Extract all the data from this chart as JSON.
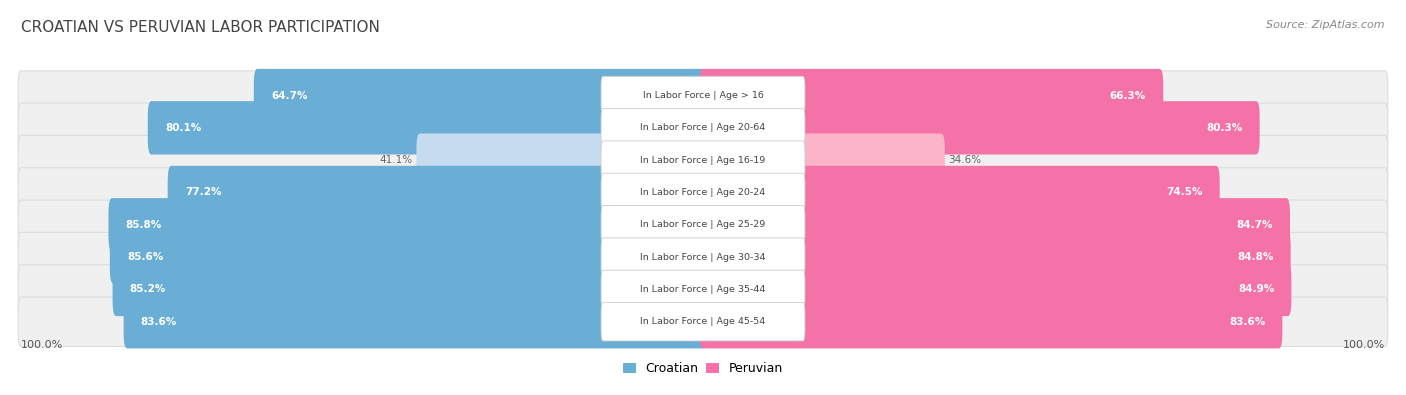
{
  "title": "CROATIAN VS PERUVIAN LABOR PARTICIPATION",
  "source": "Source: ZipAtlas.com",
  "categories": [
    "In Labor Force | Age > 16",
    "In Labor Force | Age 20-64",
    "In Labor Force | Age 16-19",
    "In Labor Force | Age 20-24",
    "In Labor Force | Age 25-29",
    "In Labor Force | Age 30-34",
    "In Labor Force | Age 35-44",
    "In Labor Force | Age 45-54"
  ],
  "croatian_values": [
    64.7,
    80.1,
    41.1,
    77.2,
    85.8,
    85.6,
    85.2,
    83.6
  ],
  "peruvian_values": [
    66.3,
    80.3,
    34.6,
    74.5,
    84.7,
    84.8,
    84.9,
    83.6
  ],
  "croatian_color": "#6aaed6",
  "croatian_color_light": "#c6dbef",
  "peruvian_color": "#f472a8",
  "peruvian_color_light": "#fbb4c8",
  "row_bg_color": "#f0f0f0",
  "row_border_color": "#dddddd",
  "label_bg_color": "#ffffff",
  "max_value": 100.0,
  "legend_croatian": "Croatian",
  "legend_peruvian": "Peruvian",
  "background_color": "#ffffff",
  "title_color": "#444444",
  "source_color": "#888888",
  "value_text_color_inside": "#ffffff",
  "value_text_color_outside": "#666666",
  "label_text_color": "#444444"
}
